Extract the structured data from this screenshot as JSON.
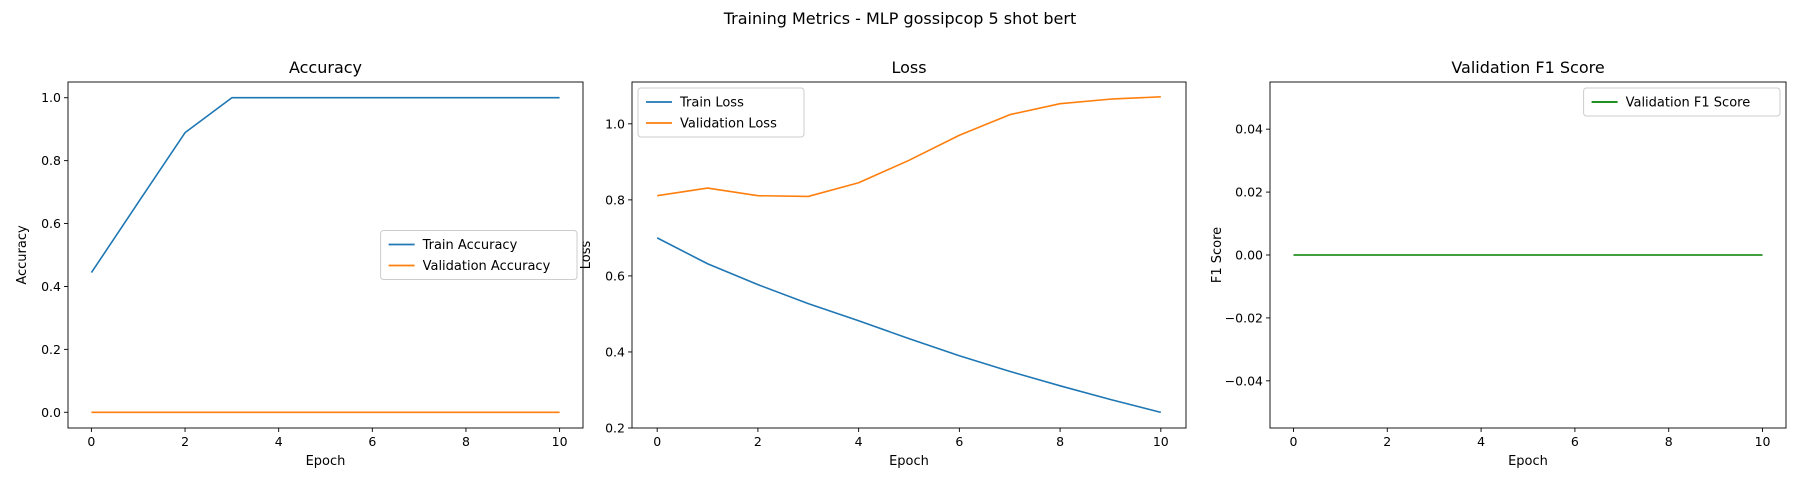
{
  "suptitle": "Training Metrics - MLP gossipcop 5 shot bert",
  "chart_data": [
    {
      "type": "line",
      "title": "Accuracy",
      "xlabel": "Epoch",
      "ylabel": "Accuracy",
      "x": [
        0,
        1,
        2,
        3,
        4,
        5,
        6,
        7,
        8,
        9,
        10
      ],
      "xlim": [
        -0.5,
        10.5
      ],
      "ylim": [
        -0.05,
        1.05
      ],
      "xticks": [
        0,
        2,
        4,
        6,
        8,
        10
      ],
      "yticks": [
        0.0,
        0.2,
        0.4,
        0.6,
        0.8,
        1.0
      ],
      "ytick_labels": [
        "0.0",
        "0.2",
        "0.4",
        "0.6",
        "0.8",
        "1.0"
      ],
      "legend_position": "center-right",
      "grid": false,
      "series": [
        {
          "name": "Train Accuracy",
          "color": "#1f77b4",
          "values": [
            0.444,
            0.667,
            0.889,
            1.0,
            1.0,
            1.0,
            1.0,
            1.0,
            1.0,
            1.0,
            1.0
          ]
        },
        {
          "name": "Validation Accuracy",
          "color": "#ff7f0e",
          "values": [
            0,
            0,
            0,
            0,
            0,
            0,
            0,
            0,
            0,
            0,
            0
          ]
        }
      ]
    },
    {
      "type": "line",
      "title": "Loss",
      "xlabel": "Epoch",
      "ylabel": "Loss",
      "x": [
        0,
        1,
        2,
        3,
        4,
        5,
        6,
        7,
        8,
        9,
        10
      ],
      "xlim": [
        -0.5,
        10.5
      ],
      "ylim": [
        0.2,
        1.11
      ],
      "xticks": [
        0,
        2,
        4,
        6,
        8,
        10
      ],
      "yticks": [
        0.2,
        0.4,
        0.6,
        0.8,
        1.0
      ],
      "ytick_labels": [
        "0.2",
        "0.4",
        "0.6",
        "0.8",
        "1.0"
      ],
      "legend_position": "upper-left",
      "grid": false,
      "series": [
        {
          "name": "Train Loss",
          "color": "#1f77b4",
          "values": [
            0.7,
            0.632,
            0.577,
            0.527,
            0.482,
            0.435,
            0.39,
            0.349,
            0.311,
            0.275,
            0.241
          ]
        },
        {
          "name": "Validation Loss",
          "color": "#ff7f0e",
          "values": [
            0.811,
            0.831,
            0.811,
            0.809,
            0.845,
            0.904,
            0.97,
            1.024,
            1.053,
            1.065,
            1.071
          ]
        }
      ]
    },
    {
      "type": "line",
      "title": "Validation F1 Score",
      "xlabel": "Epoch",
      "ylabel": "F1 Score",
      "x": [
        0,
        1,
        2,
        3,
        4,
        5,
        6,
        7,
        8,
        9,
        10
      ],
      "xlim": [
        -0.5,
        10.5
      ],
      "ylim": [
        -0.055,
        0.055
      ],
      "xticks": [
        0,
        2,
        4,
        6,
        8,
        10
      ],
      "yticks": [
        -0.04,
        -0.02,
        0.0,
        0.02,
        0.04
      ],
      "ytick_labels": [
        "−0.04",
        "−0.02",
        "0.00",
        "0.02",
        "0.04"
      ],
      "legend_position": "upper-right",
      "grid": false,
      "series": [
        {
          "name": "Validation F1 Score",
          "color": "#008000",
          "values": [
            0,
            0,
            0,
            0,
            0,
            0,
            0,
            0,
            0,
            0,
            0
          ]
        }
      ]
    }
  ]
}
